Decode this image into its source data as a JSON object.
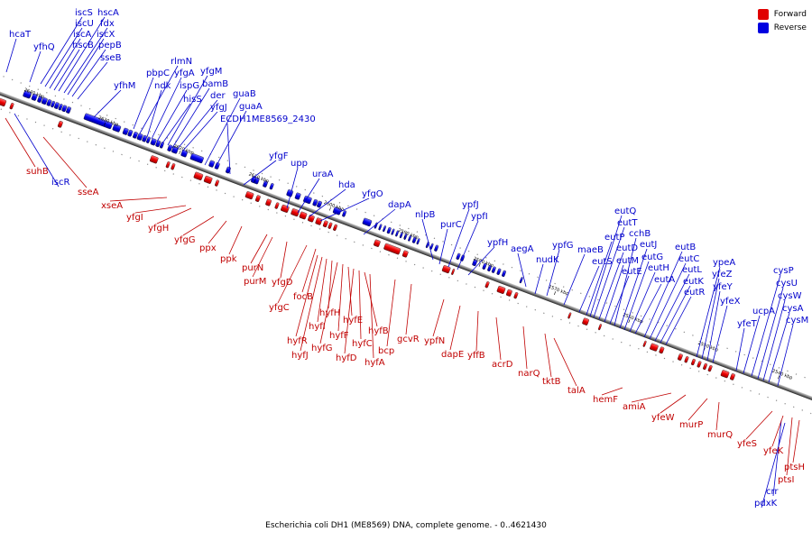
{
  "legend": {
    "items": [
      {
        "label": "Forward",
        "color": "#e00000"
      },
      {
        "label": "Reverse",
        "color": "#0000e0"
      }
    ]
  },
  "caption": "Escherichia coli DH1 (ME8569) DNA, complete genome. - 0..4621430",
  "scale_ticks": [
    "2640 kbp",
    "2630 kbp",
    "2620 kbp",
    "2610 kbp",
    "2600 kbp",
    "2590 kbp",
    "2580 kbp",
    "2570 kbp",
    "2560 kbp",
    "2550 kbp",
    "2540 kbp",
    "2530 kbp"
  ],
  "reverse_genes": [
    "hcaT",
    "yfhQ",
    "iscS",
    "iscU",
    "iscA",
    "hscB",
    "hscA",
    "fdx",
    "iscX",
    "pepB",
    "sseB",
    "yfhM",
    "pbpC",
    "rlmN",
    "ndk",
    "yfgA",
    "ispG",
    "hisS",
    "yfgM",
    "bamB",
    "der",
    "yfgJ",
    "guaB",
    "guaA",
    "ECDH1ME8569_2430",
    "yfgF",
    "upp",
    "uraA",
    "hda",
    "yfgO",
    "dapA",
    "nlpB",
    "purC",
    "ypfJ",
    "ypfI",
    "ypfH",
    "aegA",
    "nudK",
    "ypfG",
    "maeB",
    "eutS",
    "eutP",
    "eutQ",
    "eutT",
    "eutD",
    "eutM",
    "eutE",
    "cchB",
    "eutJ",
    "eutG",
    "eutH",
    "eutA",
    "eutB",
    "eutC",
    "eutL",
    "eutK",
    "eutR",
    "ypeA",
    "yfeZ",
    "yfeY",
    "yfeX",
    "yfeT",
    "ucpA",
    "cysP",
    "cysU",
    "cysW",
    "cysA",
    "cysM",
    "iscR",
    "crr",
    "pdxK"
  ],
  "forward_genes": [
    "suhB",
    "sseA",
    "xseA",
    "yfgI",
    "yfgH",
    "yfgG",
    "ppx",
    "ppk",
    "purN",
    "purM",
    "yfgD",
    "yfgC",
    "focB",
    "hyfR",
    "hyfJ",
    "hyfI",
    "hyfH",
    "hyfG",
    "hyfF",
    "hyfE",
    "hyfD",
    "hyfC",
    "hyfB",
    "hyfA",
    "bcp",
    "gcvR",
    "ypfN",
    "dapE",
    "yffB",
    "acrD",
    "narQ",
    "tktB",
    "talA",
    "hemF",
    "amiA",
    "yfeW",
    "murP",
    "murQ",
    "yfeS",
    "yfeK",
    "ptsI",
    "ptsH"
  ]
}
